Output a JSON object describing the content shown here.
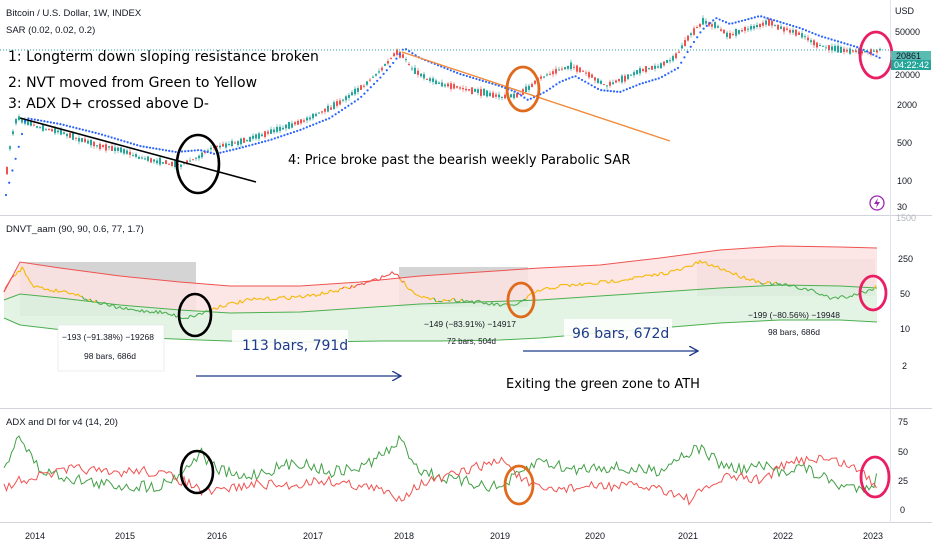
{
  "colors": {
    "bg": "#ffffff",
    "up": "#26a69a",
    "down": "#ef5350",
    "sar": "#2962ff",
    "band_top": "#ef5350",
    "band_bottom": "#4caf50",
    "nvt_yellow": "#f5b800",
    "nvt_green": "#4caf50",
    "gray_box": "#9e9e9e",
    "circle_black": "#000000",
    "circle_orange": "#e06a1b",
    "circle_pink": "#e91e63",
    "trend_orange": "#f28b3c",
    "arrow_blue": "#1e3a8a",
    "price_tag_bg": "#26a69a"
  },
  "header": {
    "symbol": "Bitcoin / U.S. Dollar, 1W, INDEX",
    "indicator": "SAR (0.02, 0.02, 0.2)"
  },
  "panel1_notes": {
    "note1": "1: Longterm down sloping resistance broken",
    "note2": "2: NVT moved from Green to Yellow",
    "note3": "3: ADX D+ crossed above D-",
    "note4": "4: Price broke past the bearish weekly Parabolic SAR"
  },
  "price_axis": {
    "currency": "USD",
    "ticks": [
      "50000",
      "20000",
      "2000",
      "500",
      "100",
      "30"
    ],
    "last_price": "20861",
    "countdown": "04:22:42"
  },
  "nvt_panel": {
    "title": "DNVT_aam (90, 90, 0.6, 77, 1.7)",
    "ticks": [
      "1500",
      "250",
      "50",
      "10",
      "2"
    ],
    "measure1_top": "−193 (−91.38%) −19268",
    "measure1_bottom": "98 bars, 686d",
    "measure2_top": "−149 (−83.91%) −14917",
    "measure2_bottom": "72 bars, 504d",
    "measure3_top": "−199 (−80.56%) −19948",
    "measure3_bottom": "98 bars, 686d",
    "bars1": "113 bars, 791d",
    "bars2": "96 bars, 672d",
    "exit_text": "Exiting the green zone to ATH"
  },
  "adx_panel": {
    "title": "ADX and DI for v4 (14, 20)",
    "ticks": [
      "75",
      "50",
      "25",
      "0"
    ]
  },
  "x_axis": {
    "labels": [
      "2014",
      "2015",
      "2016",
      "2017",
      "2018",
      "2019",
      "2020",
      "2021",
      "2022",
      "2023"
    ]
  },
  "chart_data": [
    {
      "type": "line",
      "title": "Bitcoin / U.S. Dollar, 1W, INDEX",
      "x": [
        "2014",
        "2015",
        "2016",
        "2017",
        "2018",
        "2019",
        "2020",
        "2021",
        "2022",
        "2023"
      ],
      "series": [
        {
          "name": "SAR (0.02, 0.02, 0.2)",
          "values": [
            800,
            300,
            420,
            950,
            14000,
            3600,
            7200,
            29000,
            47000,
            17000
          ]
        }
      ],
      "log_scale": true
    },
    {
      "type": "line",
      "title": "DNVT_aam (90, 90, 0.6, 77, 1.7)",
      "log_scale": true
    },
    {
      "type": "line",
      "title": "ADX and DI for v4 (14, 20)",
      "ylim": [
        0,
        80
      ]
    }
  ]
}
